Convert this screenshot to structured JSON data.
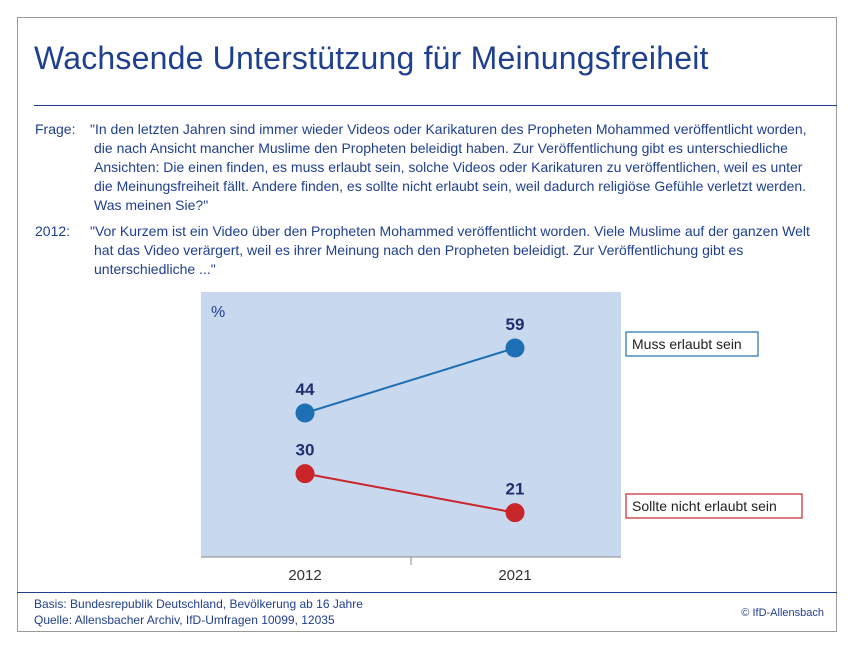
{
  "title": "Wachsende Unterstützung für Meinungsfreiheit",
  "questions": [
    {
      "label": "Frage:",
      "text": "\"In den letzten Jahren sind immer wieder Videos oder Karikaturen des Propheten Mohammed veröffentlicht worden, die nach Ansicht mancher Muslime den Propheten beleidigt haben. Zur Veröffentlichung gibt es unterschiedliche Ansichten: Die einen finden, es muss erlaubt sein, solche Videos oder Karikaturen zu veröffentlichen, weil es unter die Meinungsfreiheit fällt. Andere finden, es sollte nicht erlaubt sein, weil dadurch religiöse Gefühle verletzt werden. Was meinen Sie?\""
    },
    {
      "label": "2012:",
      "text": "\"Vor Kurzem ist ein Video über den Propheten Mohammed veröffentlicht worden. Viele Muslime auf der ganzen Welt hat das Video verärgert, weil es ihrer Meinung nach den Propheten beleidigt. Zur Veröffentlichung gibt es unterschiedliche ...\""
    }
  ],
  "chart_data": {
    "type": "line",
    "unit_label": "%",
    "categories": [
      "2012",
      "2021"
    ],
    "series": [
      {
        "name": "Muss erlaubt sein",
        "values": [
          44,
          59
        ],
        "color": "#1f6fb5"
      },
      {
        "name": "Sollte nicht erlaubt sein",
        "values": [
          30,
          21
        ],
        "color": "#c8262b"
      }
    ],
    "ylim": [
      0,
      70
    ],
    "data_labels": true,
    "plot_background": "#c8d8ee",
    "legend": "right, at end of each line"
  },
  "footer": {
    "basis": "Basis: Bundesrepublik Deutschland, Bevölkerung ab 16 Jahre",
    "quelle": "Quelle: Allensbacher Archiv, IfD-Umfragen 10099, 12035",
    "copyright": "© IfD-Allensbach"
  }
}
